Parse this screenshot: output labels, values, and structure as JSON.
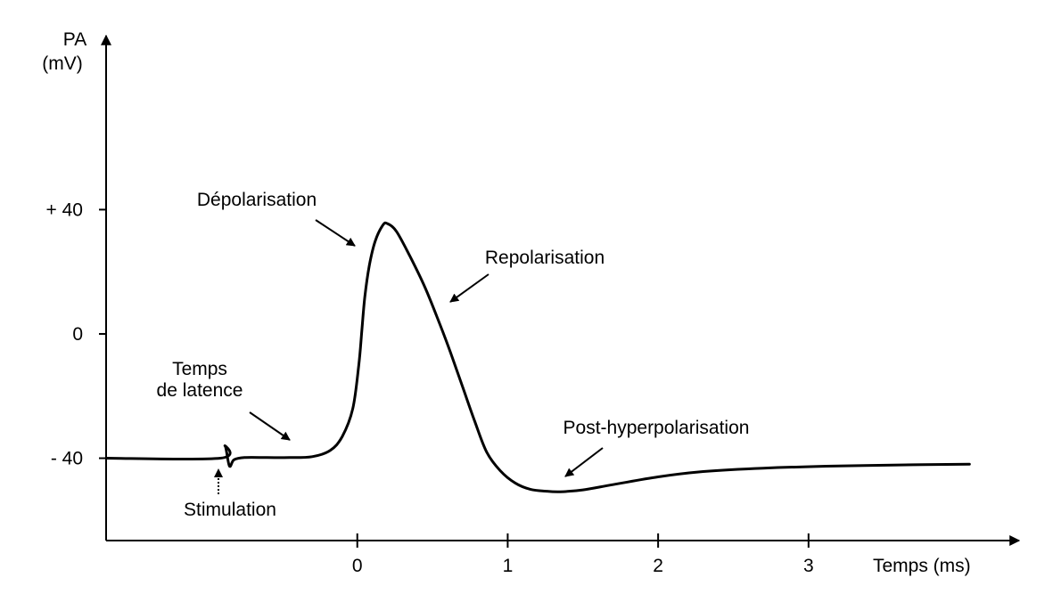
{
  "chart_data": {
    "type": "line",
    "ylabel_line1": "PA",
    "ylabel_line2": "(mV)",
    "xlabel": "Temps (ms)",
    "xlim": [
      -1.67,
      4.4
    ],
    "ylim": [
      -66.5,
      96
    ],
    "x_ticks": [
      {
        "value": 0,
        "label": "0"
      },
      {
        "value": 1,
        "label": "1"
      },
      {
        "value": 2,
        "label": "2"
      },
      {
        "value": 3,
        "label": "3"
      }
    ],
    "y_ticks": [
      {
        "value": 40,
        "label": "+ 40"
      },
      {
        "value": 0,
        "label": "0"
      },
      {
        "value": -40,
        "label": "- 40"
      }
    ],
    "grid": false,
    "series": [
      {
        "color": "#000000",
        "points": [
          [
            -1.67,
            -40
          ],
          [
            -0.91,
            -40
          ],
          [
            -0.88,
            -36
          ],
          [
            -0.85,
            -42.5
          ],
          [
            -0.82,
            -40.5
          ],
          [
            -0.75,
            -39.8
          ],
          [
            -0.6,
            -39.8
          ],
          [
            -0.45,
            -39.8
          ],
          [
            -0.3,
            -39.5
          ],
          [
            -0.18,
            -37.5
          ],
          [
            -0.1,
            -33
          ],
          [
            -0.03,
            -24
          ],
          [
            0.01,
            -10
          ],
          [
            0.03,
            1
          ],
          [
            0.05,
            12
          ],
          [
            0.08,
            22
          ],
          [
            0.12,
            30
          ],
          [
            0.17,
            35
          ],
          [
            0.2,
            35.5
          ],
          [
            0.26,
            33
          ],
          [
            0.35,
            25
          ],
          [
            0.45,
            15
          ],
          [
            0.55,
            3
          ],
          [
            0.62,
            -6
          ],
          [
            0.7,
            -17
          ],
          [
            0.78,
            -28
          ],
          [
            0.86,
            -38
          ],
          [
            0.95,
            -44
          ],
          [
            1.05,
            -48
          ],
          [
            1.15,
            -50
          ],
          [
            1.25,
            -50.6
          ],
          [
            1.35,
            -50.8
          ],
          [
            1.5,
            -50.2
          ],
          [
            1.7,
            -48.5
          ],
          [
            2.0,
            -46
          ],
          [
            2.3,
            -44.3
          ],
          [
            2.7,
            -43.2
          ],
          [
            3.2,
            -42.5
          ],
          [
            3.7,
            -42.1
          ],
          [
            4.07,
            -41.9
          ]
        ]
      }
    ],
    "annotations": [
      {
        "text": "Dépolarisation",
        "x": 0.0,
        "y": -6
      },
      {
        "text": "Repolarisation",
        "x": 0.62,
        "y": -3
      },
      {
        "lines": [
          "Temps",
          "de latence"
        ],
        "x": -0.45,
        "y": -39.8
      },
      {
        "text": "Stimulation",
        "x": -0.92,
        "y": -43
      },
      {
        "text": "Post-hyperpolarisation",
        "x": 1.35,
        "y": -51
      }
    ]
  }
}
